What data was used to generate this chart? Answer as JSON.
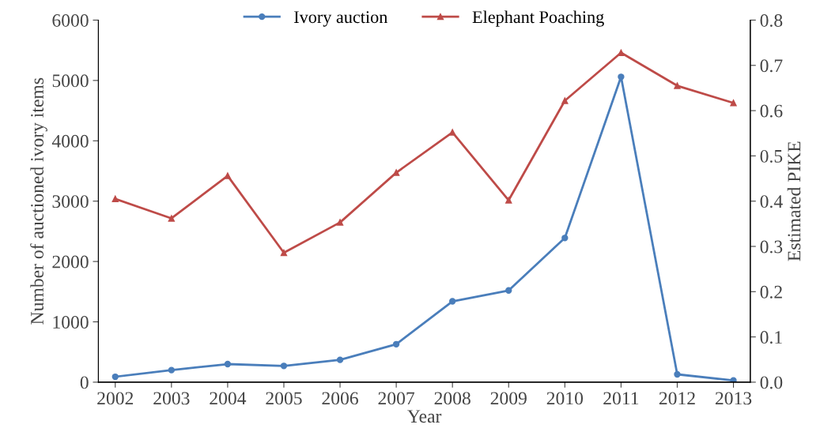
{
  "chart_data": {
    "type": "line",
    "xlabel": "Year",
    "ylabel": "Number of auctioned ivory items",
    "y2label": "Estimated PIKE",
    "categories": [
      "2002",
      "2003",
      "2004",
      "2005",
      "2006",
      "2007",
      "2008",
      "2009",
      "2010",
      "2011",
      "2012",
      "2013"
    ],
    "series": [
      {
        "name": "Ivory auction",
        "color": "#4a7ebb",
        "marker": "circle",
        "values": [
          90,
          200,
          300,
          270,
          370,
          630,
          1340,
          1520,
          2390,
          5060,
          130,
          30
        ]
      },
      {
        "name": "Elephant Poaching",
        "color": "#be4b48",
        "marker": "triangle",
        "axis": "y2",
        "values": [
          0.405,
          0.362,
          0.456,
          0.286,
          0.353,
          0.463,
          0.552,
          0.402,
          0.622,
          0.728,
          0.655,
          0.617
        ]
      }
    ],
    "ylim": [
      0,
      6000
    ],
    "yticks": [
      0,
      1000,
      2000,
      3000,
      4000,
      5000,
      6000
    ],
    "y2lim": [
      0,
      0.8
    ],
    "y2ticks": [
      {
        "value": 0,
        "label": "0.0"
      },
      0.1,
      0.2,
      0.3,
      0.4,
      0.5,
      0.6,
      0.7,
      0.8
    ],
    "grid": false,
    "legend": "top",
    "line_style": "solid"
  }
}
